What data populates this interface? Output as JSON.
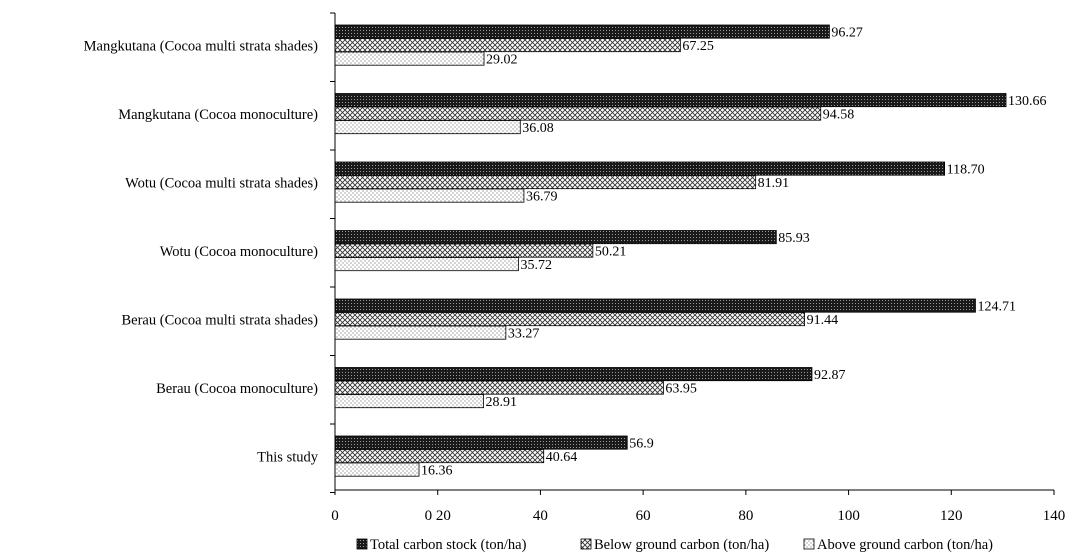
{
  "chart_data": {
    "type": "bar",
    "orientation": "horizontal",
    "categories": [
      "Mangkutana (Cocoa multi strata shades)",
      "Mangkutana (Cocoa monoculture)",
      "Wotu (Cocoa multi strata shades)",
      "Wotu (Cocoa monoculture)",
      "Berau (Cocoa multi strata shades)",
      "Berau (Cocoa monoculture)",
      "This study"
    ],
    "series": [
      {
        "name": "Total carbon stock (ton/ha)",
        "values": [
          96.27,
          130.66,
          118.7,
          85.93,
          124.71,
          92.87,
          56.9
        ],
        "labels": [
          "96.27",
          "130.66",
          "118.70",
          "85.93",
          "124.71",
          "92.87",
          "56.9"
        ],
        "pattern": "dense-dark"
      },
      {
        "name": "Below ground carbon (ton/ha)",
        "values": [
          67.25,
          94.58,
          81.91,
          50.21,
          91.44,
          63.95,
          40.64
        ],
        "labels": [
          "67.25",
          "94.58",
          "81.91",
          "50.21",
          "91.44",
          "63.95",
          "40.64"
        ],
        "pattern": "crosshatch"
      },
      {
        "name": "Above ground carbon (ton/ha)",
        "values": [
          29.02,
          36.08,
          36.79,
          35.72,
          33.27,
          28.91,
          16.36
        ],
        "labels": [
          "29.02",
          "36.08",
          "36.79",
          "35.72",
          "33.27",
          "28.91",
          "16.36"
        ],
        "pattern": "dotted"
      }
    ],
    "xlim": [
      0,
      140
    ],
    "xticks": [
      0,
      20,
      40,
      60,
      80,
      100,
      120,
      140
    ],
    "xtick_labels": [
      "0",
      "0 20",
      "40",
      "60",
      "80",
      "100",
      "120",
      "140"
    ],
    "title": "",
    "xlabel": "",
    "ylabel": "",
    "grid": false,
    "legend_position": "bottom"
  }
}
